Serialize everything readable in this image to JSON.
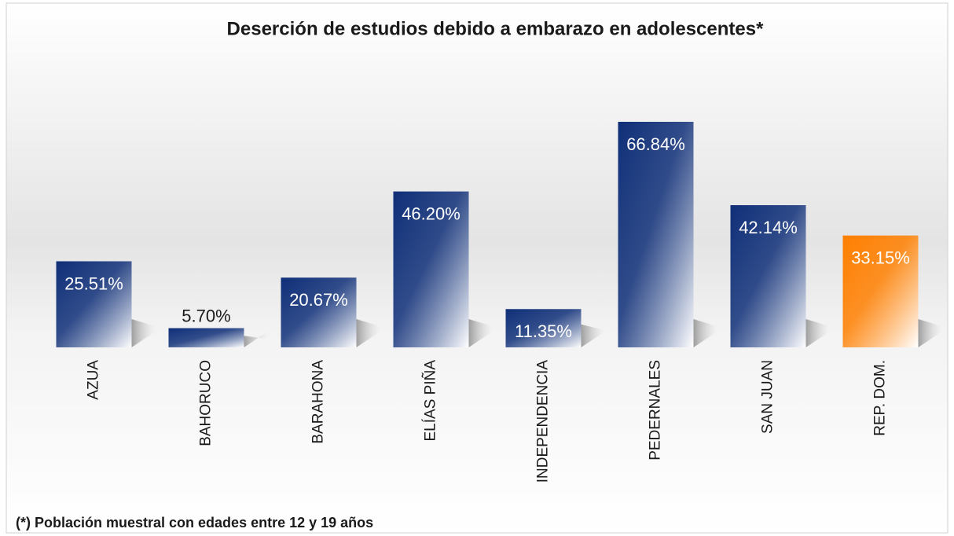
{
  "chart_data": {
    "type": "bar",
    "title": "Deserción de estudios debido a embarazo en adolescentes*",
    "footnote": "(*) Población muestral con edades entre 12 y 19 años",
    "categories": [
      "AZUA",
      "BAHORUCO",
      "BARAHONA",
      "ELÍAS PIÑA",
      "INDEPENDENCIA",
      "PEDERNALES",
      "SAN JUAN",
      "REP. DOM."
    ],
    "values": [
      25.51,
      5.7,
      20.67,
      46.2,
      11.35,
      66.84,
      42.14,
      33.15
    ],
    "value_labels": [
      "25.51%",
      "5.70%",
      "20.67%",
      "46.20%",
      "11.35%",
      "66.84%",
      "42.14%",
      "33.15%"
    ],
    "colors": [
      "#0f2f78",
      "#0f2f78",
      "#0f2f78",
      "#0f2f78",
      "#0f2f78",
      "#0f2f78",
      "#0f2f78",
      "#ff7f00"
    ]
  }
}
